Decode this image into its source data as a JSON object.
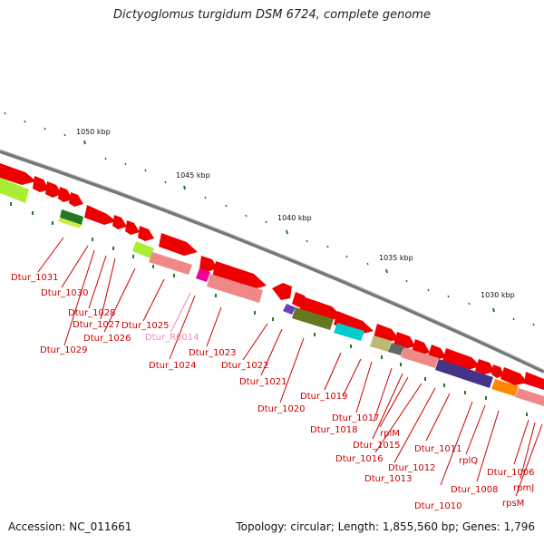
{
  "title": "Dictyoglomus turgidum DSM 6724, complete genome",
  "accession": "Accession: NC_011661",
  "summary": "Topology: circular; Length: 1,855,560 bp; Genes: 1,796",
  "colors": {
    "gene_arrow": "#ee0000",
    "label": "#cc0000",
    "rna_label": "#ee88bb",
    "backbone": "#777777",
    "tick": "#227722"
  },
  "kbp_labels": [
    "1050 kbp",
    "1045 kbp",
    "1040 kbp",
    "1035 kbp",
    "1030 kbp"
  ],
  "gene_labels": [
    "Dtur_1031",
    "Dtur_1030",
    "Dtur_1028",
    "Dtur_1027",
    "Dtur_1026",
    "Dtur_1029",
    "Dtur_1025",
    "Dtur_R0014",
    "Dtur_1024",
    "Dtur_1023",
    "Dtur_1022",
    "Dtur_1021",
    "Dtur_1020",
    "Dtur_1019",
    "Dtur_1017",
    "Dtur_1018",
    "rplM",
    "Dtur_1015",
    "Dtur_1016",
    "Dtur_1012",
    "Dtur_1013",
    "Dtur_1011",
    "Dtur_1010",
    "rplQ",
    "Dtur_1008",
    "Dtur_1006",
    "rpmJ",
    "rpsM"
  ]
}
